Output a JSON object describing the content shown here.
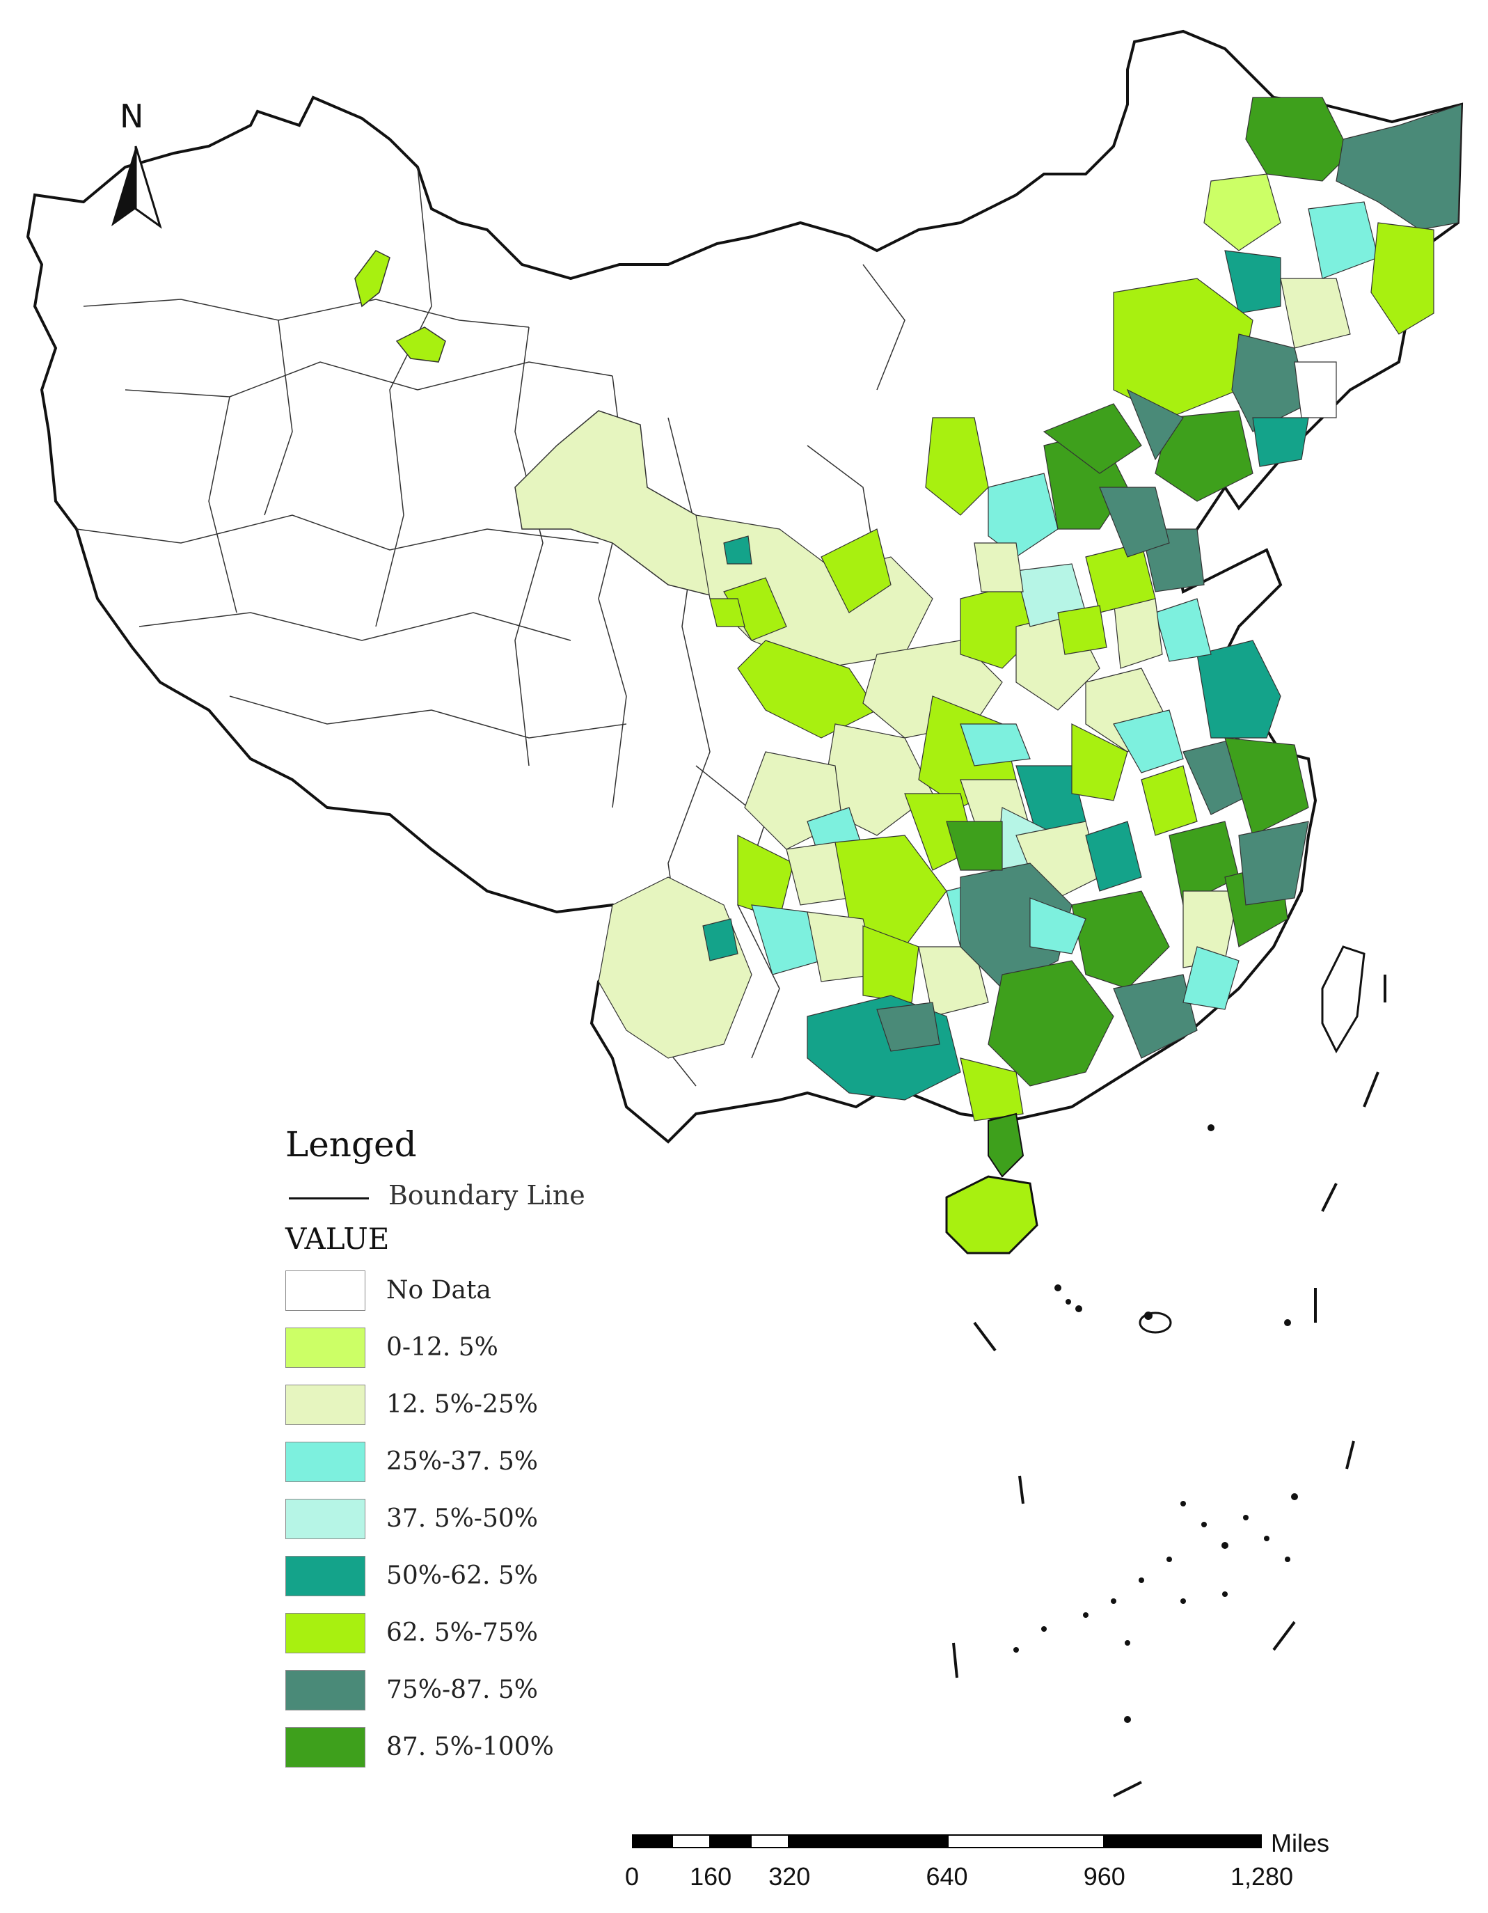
{
  "north_arrow": {
    "label": "N"
  },
  "legend": {
    "title": "Lenged",
    "boundary_label": "Boundary Line",
    "value_title": "VALUE",
    "items": [
      {
        "label": "No Data",
        "color": "#ffffff"
      },
      {
        "label": "0-12. 5%",
        "color": "#ccff66"
      },
      {
        "label": "12. 5%-25%",
        "color": "#e6f5bf"
      },
      {
        "label": "25%-37. 5%",
        "color": "#7df0de"
      },
      {
        "label": "37. 5%-50%",
        "color": "#b6f5e6"
      },
      {
        "label": "50%-62. 5%",
        "color": "#14a38a"
      },
      {
        "label": "62. 5%-75%",
        "color": "#a8f010"
      },
      {
        "label": "75%-87. 5%",
        "color": "#4a8a78"
      },
      {
        "label": "87. 5%-100%",
        "color": "#3ea01c"
      }
    ]
  },
  "scale_bar": {
    "unit": "Miles",
    "ticks": [
      "0",
      "160",
      "320",
      "640",
      "960",
      "1,280"
    ]
  }
}
